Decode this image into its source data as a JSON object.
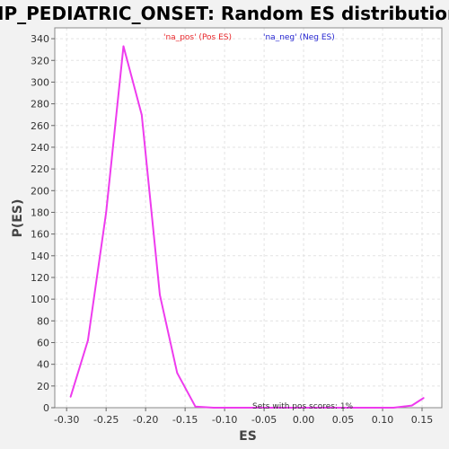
{
  "chart_data": {
    "type": "line",
    "title": "HP_PEDIATRIC_ONSET: Random ES distribution",
    "xlabel": "ES",
    "ylabel": "P(ES)",
    "xlim": [
      -0.315,
      0.175
    ],
    "ylim": [
      0,
      350
    ],
    "xticks": [
      "-0.30",
      "-0.25",
      "-0.20",
      "-0.15",
      "-0.10",
      "-0.05",
      "0.00",
      "0.05",
      "0.10",
      "0.15"
    ],
    "xtick_values": [
      -0.3,
      -0.25,
      -0.2,
      -0.15,
      -0.1,
      -0.05,
      0.0,
      0.05,
      0.1,
      0.15
    ],
    "yticks": [
      0,
      20,
      40,
      60,
      80,
      100,
      120,
      140,
      160,
      180,
      200,
      220,
      240,
      260,
      280,
      300,
      320,
      340
    ],
    "grid": true,
    "legend": [
      {
        "label": "'na_pos' (Pos ES)",
        "color": "#e8262a"
      },
      {
        "label": "'na_neg' (Neg ES)",
        "color": "#2424d0"
      }
    ],
    "series": [
      {
        "color": "#ee3bee",
        "x": [
          -0.295,
          -0.273,
          -0.25,
          -0.228,
          -0.205,
          -0.182,
          -0.16,
          -0.137,
          -0.114,
          -0.091,
          -0.068,
          -0.046,
          -0.023,
          0.0,
          0.023,
          0.046,
          0.069,
          0.091,
          0.114,
          0.137,
          0.152
        ],
        "y": [
          10,
          62,
          180,
          333,
          270,
          104,
          32,
          1,
          0,
          0,
          0,
          0,
          0,
          0,
          0,
          0,
          0,
          0,
          0,
          2,
          9
        ]
      }
    ],
    "annotation": "Sets with pos scores: 1%"
  }
}
